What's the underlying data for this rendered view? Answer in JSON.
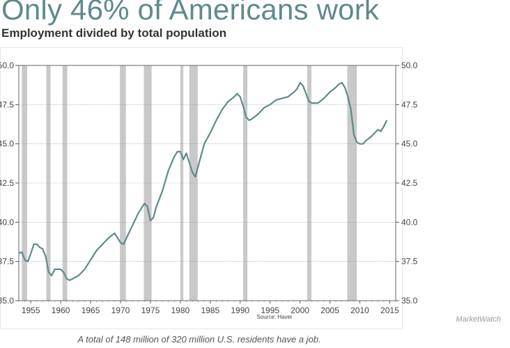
{
  "header": {
    "title": "Only 46% of Americans work",
    "subtitle": "Employment divided by total population"
  },
  "chart_data": {
    "type": "line",
    "title": "Only 46% of Americans work",
    "subtitle": "Employment divided by total population",
    "xlabel": "",
    "ylabel": "",
    "xlim": [
      1953,
      2016
    ],
    "ylim": [
      35.0,
      50.0
    ],
    "x_ticks": [
      "1955",
      "1960",
      "1965",
      "1970",
      "1975",
      "1980",
      "1985",
      "1990",
      "1995",
      "2000",
      "2005",
      "2010",
      "2015"
    ],
    "y_ticks": [
      "35.0",
      "37.5",
      "40.0",
      "42.5",
      "45.0",
      "47.5",
      "50.0"
    ],
    "grid": true,
    "source": "Source: Haver",
    "recession_shading": [
      [
        1953.5,
        1954.4
      ],
      [
        1957.6,
        1958.3
      ],
      [
        1960.3,
        1961.1
      ],
      [
        1969.9,
        1970.9
      ],
      [
        1973.9,
        1975.2
      ],
      [
        1980.0,
        1980.5
      ],
      [
        1981.5,
        1982.9
      ],
      [
        1990.5,
        1991.2
      ],
      [
        2001.2,
        2001.9
      ],
      [
        2007.9,
        2009.5
      ]
    ],
    "series": [
      {
        "color": "#5f8a8b",
        "x": [
          1953.0,
          1953.5,
          1954.0,
          1954.5,
          1955.0,
          1955.5,
          1956.0,
          1956.5,
          1957.0,
          1957.5,
          1958.0,
          1958.5,
          1959.0,
          1959.5,
          1960.0,
          1960.5,
          1961.0,
          1961.5,
          1962.0,
          1963.0,
          1964.0,
          1965.0,
          1966.0,
          1967.0,
          1968.0,
          1969.0,
          1969.5,
          1970.0,
          1970.5,
          1971.0,
          1972.0,
          1973.0,
          1974.0,
          1974.5,
          1975.0,
          1975.5,
          1976.0,
          1977.0,
          1978.0,
          1979.0,
          1979.5,
          1980.0,
          1980.5,
          1981.0,
          1981.5,
          1982.0,
          1982.5,
          1983.0,
          1984.0,
          1985.0,
          1986.0,
          1987.0,
          1988.0,
          1989.0,
          1989.5,
          1990.0,
          1990.5,
          1991.0,
          1991.5,
          1992.0,
          1993.0,
          1994.0,
          1995.0,
          1996.0,
          1997.0,
          1998.0,
          1999.0,
          1999.5,
          2000.0,
          2000.5,
          2001.0,
          2001.5,
          2002.0,
          2003.0,
          2004.0,
          2005.0,
          2006.0,
          2006.5,
          2007.0,
          2007.5,
          2008.0,
          2008.5,
          2009.0,
          2009.5,
          2010.0,
          2010.5,
          2011.0,
          2012.0,
          2013.0,
          2013.5,
          2014.0,
          2014.5
        ],
        "y": [
          38.0,
          38.1,
          37.6,
          37.5,
          38.0,
          38.6,
          38.6,
          38.4,
          38.3,
          37.8,
          36.8,
          36.6,
          37.0,
          37.0,
          37.0,
          36.8,
          36.4,
          36.3,
          36.4,
          36.6,
          37.0,
          37.6,
          38.2,
          38.6,
          39.0,
          39.3,
          39.0,
          38.7,
          38.6,
          39.0,
          39.8,
          40.6,
          41.2,
          41.0,
          40.1,
          40.3,
          41.0,
          42.0,
          43.3,
          44.2,
          44.5,
          44.5,
          44.0,
          44.4,
          43.8,
          43.2,
          42.9,
          43.6,
          45.0,
          45.7,
          46.5,
          47.2,
          47.7,
          48.0,
          48.2,
          48.0,
          47.4,
          46.7,
          46.5,
          46.6,
          46.9,
          47.3,
          47.5,
          47.8,
          47.9,
          48.0,
          48.3,
          48.5,
          48.9,
          48.7,
          48.2,
          47.7,
          47.6,
          47.6,
          47.9,
          48.3,
          48.6,
          48.8,
          48.9,
          48.6,
          48.0,
          47.2,
          45.6,
          45.1,
          45.0,
          45.0,
          45.2,
          45.5,
          45.9,
          45.8,
          46.1,
          46.5
        ]
      }
    ]
  },
  "watermark": "MarketWatch",
  "caption": "A total of 148 million of 320 million U.S. residents have a job."
}
